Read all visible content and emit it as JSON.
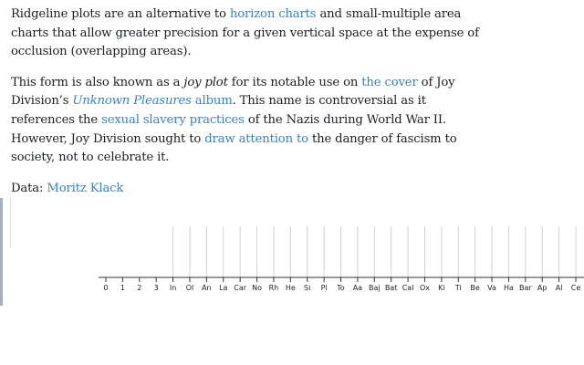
{
  "paragraphs": {
    "p1": {
      "t1": "Ridgeline plots are an alternative to ",
      "l1": "horizon charts",
      "t2": " and small-multiple area charts that allow greater precision for a given vertical space at the expense of occlusion (overlapping areas)."
    },
    "p2": {
      "t1": "This form is also known as a ",
      "em1": "joy plot",
      "t2": " for its notable use on ",
      "l1": "the cover",
      "t3": " of Joy Division’s ",
      "l2": "Unknown Pleasures",
      "l3": " album",
      "t4": ". This name is controversial as it references the ",
      "l4": "sexual slavery practices",
      "t5": " of the Nazis during World War II. However, Joy Division sought to ",
      "l5": "draw attention to",
      "t6": " the danger of fascism to society, not to celebrate it."
    },
    "p3": {
      "t1": "Data: ",
      "l1": "Moritz Klack"
    }
  },
  "colors": {
    "link": "#3b82c4",
    "gridline": "#d0d0d0",
    "axis": "#333333",
    "sidebar": "#a9b0bd"
  },
  "chart_data": {
    "type": "area",
    "categories": [
      "0",
      "1",
      "2",
      "3",
      "In",
      "Ol",
      "An",
      "La",
      "Car",
      "No",
      "Rh",
      "He",
      "Si",
      "Pl",
      "To",
      "Aa",
      "Baj",
      "Bat",
      "Cal",
      "Ox",
      "Ki",
      "Ti",
      "Be",
      "Va",
      "Ha",
      "Bar",
      "Ap",
      "Al",
      "Ce"
    ],
    "gridlines_from_category": "In",
    "series": [],
    "grid": true
  }
}
